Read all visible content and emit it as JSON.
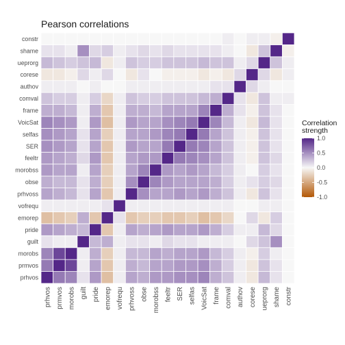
{
  "chart_data": {
    "type": "heatmap",
    "title": "Pearson correlations",
    "xlabel": "",
    "ylabel": "",
    "variables": [
      "prhvos",
      "prmvos",
      "morobs",
      "guilt",
      "pride",
      "emorep",
      "vofrequ",
      "prhvoss",
      "obse",
      "morobss",
      "feeltr",
      "SER",
      "selfas",
      "VoicSat",
      "frame",
      "comval",
      "authov",
      "corese",
      "ueprorg",
      "shame",
      "constr"
    ],
    "legend": {
      "title_line1": "Correlation",
      "title_line2": "strength",
      "ticks": [
        "1.0",
        "0.5",
        "0.0",
        "-0.5",
        "-1.0"
      ],
      "tick_values": [
        1.0,
        0.5,
        0.0,
        -0.5,
        -1.0
      ],
      "placement": "right"
    },
    "colors": {
      "negative": "#B35806",
      "zero": "#F7F7F7",
      "positive": "#542788"
    },
    "matrix": [
      [
        1.0,
        0.6,
        0.55,
        0.1,
        0.45,
        -0.35,
        0.05,
        0.4,
        0.35,
        0.45,
        0.45,
        0.5,
        0.5,
        0.55,
        0.35,
        0.25,
        0.05,
        -0.1,
        0.3,
        0.1,
        0.0
      ],
      [
        0.6,
        1.0,
        0.85,
        0.05,
        0.4,
        -0.3,
        0.05,
        0.35,
        0.3,
        0.4,
        0.4,
        0.45,
        0.45,
        0.5,
        0.35,
        0.2,
        0.05,
        -0.1,
        0.25,
        0.1,
        0.0
      ],
      [
        0.55,
        0.85,
        1.0,
        0.05,
        0.35,
        -0.25,
        0.05,
        0.3,
        0.3,
        0.4,
        0.35,
        0.4,
        0.4,
        0.45,
        0.3,
        0.2,
        0.05,
        -0.05,
        0.2,
        0.05,
        0.0
      ],
      [
        0.1,
        0.05,
        0.05,
        1.0,
        0.3,
        0.35,
        0.05,
        0.1,
        0.1,
        0.05,
        0.15,
        0.1,
        0.1,
        0.05,
        0.05,
        0.05,
        0.0,
        0.15,
        0.25,
        0.5,
        0.0
      ],
      [
        0.45,
        0.4,
        0.35,
        0.3,
        1.0,
        -0.3,
        0.05,
        0.4,
        0.35,
        0.4,
        0.45,
        0.4,
        0.4,
        0.45,
        0.35,
        0.2,
        0.05,
        0.05,
        0.3,
        0.15,
        0.0
      ],
      [
        -0.35,
        -0.3,
        -0.25,
        0.35,
        -0.3,
        1.0,
        0.1,
        -0.3,
        -0.25,
        -0.25,
        -0.3,
        -0.3,
        -0.25,
        -0.35,
        -0.3,
        -0.2,
        0.0,
        0.15,
        -0.1,
        0.2,
        0.0
      ],
      [
        0.05,
        0.05,
        0.05,
        0.05,
        0.05,
        0.1,
        1.0,
        0.05,
        0.05,
        0.05,
        0.05,
        0.05,
        0.05,
        0.05,
        0.05,
        0.05,
        0.0,
        0.0,
        0.05,
        0.05,
        0.0
      ],
      [
        0.4,
        0.35,
        0.3,
        0.1,
        0.4,
        -0.3,
        0.05,
        1.0,
        0.5,
        0.4,
        0.4,
        0.45,
        0.4,
        0.45,
        0.35,
        0.25,
        0.05,
        -0.1,
        0.25,
        0.1,
        0.0
      ],
      [
        0.35,
        0.3,
        0.3,
        0.1,
        0.35,
        -0.25,
        0.05,
        0.5,
        1.0,
        0.55,
        0.45,
        0.4,
        0.4,
        0.4,
        0.35,
        0.2,
        0.05,
        0.1,
        0.2,
        0.15,
        0.0
      ],
      [
        0.45,
        0.4,
        0.4,
        0.05,
        0.4,
        -0.25,
        0.05,
        0.4,
        0.55,
        1.0,
        0.45,
        0.4,
        0.45,
        0.4,
        0.3,
        0.2,
        0.05,
        0.0,
        0.2,
        0.1,
        0.0
      ],
      [
        0.45,
        0.4,
        0.35,
        0.15,
        0.45,
        -0.3,
        0.05,
        0.4,
        0.45,
        0.45,
        1.0,
        0.6,
        0.55,
        0.5,
        0.4,
        0.25,
        0.05,
        -0.05,
        0.25,
        0.15,
        0.0
      ],
      [
        0.5,
        0.45,
        0.4,
        0.1,
        0.4,
        -0.3,
        0.05,
        0.45,
        0.4,
        0.4,
        0.6,
        1.0,
        0.6,
        0.55,
        0.4,
        0.25,
        0.05,
        -0.05,
        0.25,
        0.1,
        0.0
      ],
      [
        0.5,
        0.45,
        0.4,
        0.1,
        0.4,
        -0.25,
        0.05,
        0.4,
        0.4,
        0.45,
        0.55,
        0.6,
        1.0,
        0.6,
        0.4,
        0.25,
        0.05,
        -0.05,
        0.25,
        0.1,
        0.0
      ],
      [
        0.55,
        0.5,
        0.45,
        0.05,
        0.45,
        -0.35,
        0.05,
        0.45,
        0.4,
        0.4,
        0.5,
        0.55,
        0.6,
        1.0,
        0.55,
        0.3,
        0.05,
        -0.1,
        0.3,
        0.1,
        0.0
      ],
      [
        0.35,
        0.35,
        0.3,
        0.05,
        0.35,
        -0.3,
        0.05,
        0.35,
        0.35,
        0.3,
        0.4,
        0.4,
        0.4,
        0.55,
        1.0,
        0.35,
        0.1,
        -0.05,
        0.25,
        0.1,
        0.0
      ],
      [
        0.25,
        0.2,
        0.2,
        0.05,
        0.2,
        -0.2,
        0.05,
        0.25,
        0.2,
        0.2,
        0.25,
        0.25,
        0.25,
        0.3,
        0.35,
        1.0,
        0.1,
        -0.1,
        0.25,
        0.05,
        0.05
      ],
      [
        0.05,
        0.05,
        0.05,
        0.0,
        0.05,
        0.0,
        0.0,
        0.05,
        0.05,
        0.05,
        0.05,
        0.05,
        0.05,
        0.05,
        0.1,
        0.1,
        1.0,
        0.15,
        0.05,
        0.0,
        0.0
      ],
      [
        -0.1,
        -0.1,
        -0.05,
        0.15,
        0.05,
        0.15,
        0.0,
        -0.1,
        0.1,
        0.0,
        -0.05,
        -0.05,
        -0.05,
        -0.1,
        -0.05,
        -0.1,
        0.15,
        1.0,
        0.15,
        -0.1,
        0.05
      ],
      [
        0.3,
        0.25,
        0.2,
        0.25,
        0.3,
        -0.1,
        0.05,
        0.25,
        0.2,
        0.2,
        0.25,
        0.25,
        0.25,
        0.3,
        0.25,
        0.25,
        0.05,
        0.15,
        1.0,
        0.25,
        0.05
      ],
      [
        0.1,
        0.1,
        0.05,
        0.5,
        0.15,
        0.2,
        0.05,
        0.1,
        0.15,
        0.1,
        0.15,
        0.1,
        0.1,
        0.1,
        0.1,
        0.05,
        0.0,
        -0.1,
        0.25,
        1.0,
        -0.05
      ],
      [
        0.0,
        0.0,
        0.0,
        0.0,
        0.0,
        0.0,
        0.0,
        0.0,
        0.0,
        0.0,
        0.0,
        0.0,
        0.0,
        0.0,
        0.0,
        0.05,
        0.0,
        0.05,
        0.05,
        -0.05,
        1.0
      ]
    ]
  }
}
